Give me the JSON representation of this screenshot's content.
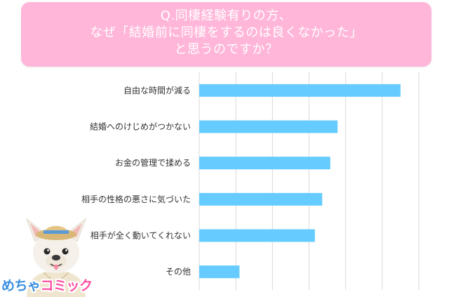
{
  "chart_data": {
    "type": "bar",
    "orientation": "horizontal",
    "title_lines": [
      "Q.同棲経験有りの方、",
      "なぜ「結婚前に同棲をするのは良くなかった」",
      "と思うのですか？"
    ],
    "categories": [
      "自由な時間が減る",
      "結婚へのけじめがつかない",
      "お金の管理で揉める",
      "相手の性格の悪さに気づいた",
      "相手が全く動いてくれない",
      "その他"
    ],
    "values": [
      27.5,
      18.9,
      17.9,
      16.8,
      15.8,
      5.5
    ],
    "xlim": [
      0,
      30
    ],
    "grid": true,
    "bar_color": "#66ccff"
  },
  "colors": {
    "banner": "#ffb6d9",
    "brand_pink": "#ff4fa3",
    "brand_blue": "#3a8fe0"
  },
  "brand": {
    "part1": "めちゃ",
    "part2": "コミック"
  },
  "icons": {
    "mascot": "french-bulldog-mascot-icon"
  }
}
